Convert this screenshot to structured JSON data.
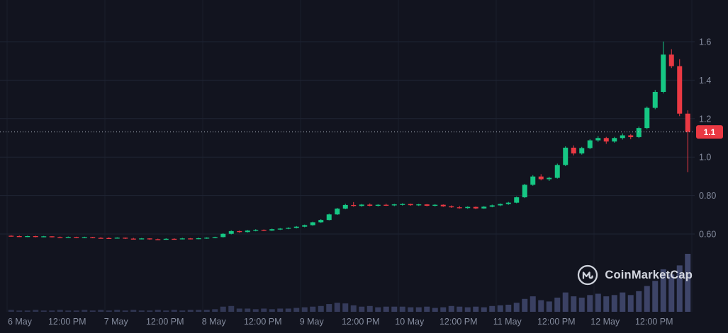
{
  "watermark": {
    "text": "CoinMarketCap"
  },
  "colors": {
    "background": "#12141f",
    "up": "#16c784",
    "down": "#ea3943",
    "grid": "#1f2433",
    "day_grid": "#1a1e2b",
    "axis_text": "#858c9e",
    "volume": "#3e4569",
    "price_line": "#b9bfcc",
    "badge_bg": "#ea3943",
    "badge_text": "#ffffff",
    "watermark_color": "#ced2db"
  },
  "chart_data": {
    "type": "candlestick",
    "title": "",
    "legend": [],
    "grid": true,
    "y_axis": {
      "side": "right",
      "ticks": [
        1.6,
        1.4,
        1.2,
        1.0,
        0.8,
        0.6
      ],
      "tick_labels": [
        "1.6",
        "1.4",
        "1.2",
        "1.0",
        "0.80",
        "0.60"
      ],
      "visible_range": [
        0.55,
        1.65
      ]
    },
    "x_axis": {
      "interval": "2h",
      "labels": [
        {
          "text": "6 May",
          "index": 0
        },
        {
          "text": "12:00 PM",
          "index": 6
        },
        {
          "text": "7 May",
          "index": 12
        },
        {
          "text": "12:00 PM",
          "index": 18
        },
        {
          "text": "8 May",
          "index": 24
        },
        {
          "text": "12:00 PM",
          "index": 30
        },
        {
          "text": "9 May",
          "index": 36
        },
        {
          "text": "12:00 PM",
          "index": 42
        },
        {
          "text": "10 May",
          "index": 48
        },
        {
          "text": "12:00 PM",
          "index": 54
        },
        {
          "text": "11 May",
          "index": 60
        },
        {
          "text": "12:00 PM",
          "index": 66
        },
        {
          "text": "12 May",
          "index": 72
        },
        {
          "text": "12:00 PM",
          "index": 78
        }
      ]
    },
    "current_price": {
      "value": 1.131,
      "label": "1.1"
    },
    "candles_ohlc": [
      [
        0.591,
        0.594,
        0.586,
        0.589
      ],
      [
        0.589,
        0.592,
        0.585,
        0.587
      ],
      [
        0.587,
        0.591,
        0.584,
        0.589
      ],
      [
        0.589,
        0.591,
        0.583,
        0.586
      ],
      [
        0.586,
        0.59,
        0.583,
        0.588
      ],
      [
        0.588,
        0.589,
        0.582,
        0.584
      ],
      [
        0.584,
        0.587,
        0.58,
        0.582
      ],
      [
        0.582,
        0.587,
        0.58,
        0.585
      ],
      [
        0.585,
        0.586,
        0.579,
        0.581
      ],
      [
        0.581,
        0.586,
        0.579,
        0.584
      ],
      [
        0.584,
        0.585,
        0.578,
        0.58
      ],
      [
        0.58,
        0.584,
        0.577,
        0.579
      ],
      [
        0.579,
        0.583,
        0.576,
        0.578
      ],
      [
        0.578,
        0.583,
        0.576,
        0.581
      ],
      [
        0.581,
        0.582,
        0.574,
        0.576
      ],
      [
        0.576,
        0.58,
        0.572,
        0.574
      ],
      [
        0.574,
        0.579,
        0.572,
        0.577
      ],
      [
        0.577,
        0.578,
        0.57,
        0.573
      ],
      [
        0.573,
        0.576,
        0.569,
        0.571
      ],
      [
        0.571,
        0.578,
        0.57,
        0.575
      ],
      [
        0.575,
        0.578,
        0.571,
        0.573
      ],
      [
        0.573,
        0.58,
        0.572,
        0.577
      ],
      [
        0.577,
        0.579,
        0.572,
        0.575
      ],
      [
        0.575,
        0.581,
        0.573,
        0.578
      ],
      [
        0.578,
        0.583,
        0.575,
        0.581
      ],
      [
        0.581,
        0.586,
        0.578,
        0.584
      ],
      [
        0.584,
        0.604,
        0.582,
        0.601
      ],
      [
        0.601,
        0.619,
        0.598,
        0.615
      ],
      [
        0.615,
        0.618,
        0.607,
        0.61
      ],
      [
        0.61,
        0.621,
        0.608,
        0.618
      ],
      [
        0.618,
        0.625,
        0.614,
        0.622
      ],
      [
        0.622,
        0.624,
        0.615,
        0.618
      ],
      [
        0.618,
        0.628,
        0.616,
        0.625
      ],
      [
        0.625,
        0.631,
        0.621,
        0.628
      ],
      [
        0.628,
        0.635,
        0.625,
        0.632
      ],
      [
        0.632,
        0.641,
        0.629,
        0.638
      ],
      [
        0.638,
        0.649,
        0.635,
        0.646
      ],
      [
        0.646,
        0.664,
        0.643,
        0.661
      ],
      [
        0.661,
        0.677,
        0.658,
        0.673
      ],
      [
        0.673,
        0.706,
        0.671,
        0.702
      ],
      [
        0.702,
        0.736,
        0.699,
        0.732
      ],
      [
        0.732,
        0.757,
        0.729,
        0.751
      ],
      [
        0.751,
        0.766,
        0.742,
        0.746
      ],
      [
        0.746,
        0.756,
        0.742,
        0.753
      ],
      [
        0.753,
        0.759,
        0.744,
        0.747
      ],
      [
        0.747,
        0.755,
        0.743,
        0.752
      ],
      [
        0.752,
        0.758,
        0.746,
        0.749
      ],
      [
        0.749,
        0.757,
        0.745,
        0.754
      ],
      [
        0.754,
        0.76,
        0.748,
        0.756
      ],
      [
        0.756,
        0.758,
        0.747,
        0.75
      ],
      [
        0.75,
        0.757,
        0.746,
        0.754
      ],
      [
        0.754,
        0.756,
        0.744,
        0.747
      ],
      [
        0.747,
        0.755,
        0.743,
        0.752
      ],
      [
        0.752,
        0.754,
        0.741,
        0.744
      ],
      [
        0.744,
        0.749,
        0.736,
        0.739
      ],
      [
        0.739,
        0.746,
        0.732,
        0.735
      ],
      [
        0.735,
        0.744,
        0.731,
        0.741
      ],
      [
        0.741,
        0.743,
        0.729,
        0.733
      ],
      [
        0.733,
        0.745,
        0.731,
        0.742
      ],
      [
        0.742,
        0.753,
        0.739,
        0.749
      ],
      [
        0.749,
        0.759,
        0.745,
        0.756
      ],
      [
        0.756,
        0.767,
        0.752,
        0.763
      ],
      [
        0.763,
        0.795,
        0.76,
        0.791
      ],
      [
        0.791,
        0.861,
        0.787,
        0.856
      ],
      [
        0.856,
        0.906,
        0.851,
        0.899
      ],
      [
        0.899,
        0.911,
        0.879,
        0.885
      ],
      [
        0.885,
        0.898,
        0.876,
        0.892
      ],
      [
        0.892,
        0.966,
        0.888,
        0.959
      ],
      [
        0.959,
        1.056,
        0.953,
        1.049
      ],
      [
        1.049,
        1.061,
        1.009,
        1.019
      ],
      [
        1.019,
        1.053,
        1.013,
        1.047
      ],
      [
        1.047,
        1.093,
        1.041,
        1.087
      ],
      [
        1.087,
        1.109,
        1.079,
        1.099
      ],
      [
        1.099,
        1.105,
        1.069,
        1.081
      ],
      [
        1.081,
        1.105,
        1.075,
        1.099
      ],
      [
        1.099,
        1.123,
        1.091,
        1.113
      ],
      [
        1.113,
        1.119,
        1.093,
        1.104
      ],
      [
        1.104,
        1.159,
        1.099,
        1.151
      ],
      [
        1.151,
        1.263,
        1.145,
        1.256
      ],
      [
        1.256,
        1.349,
        1.249,
        1.339
      ],
      [
        1.339,
        1.601,
        1.331,
        1.533
      ],
      [
        1.533,
        1.561,
        1.463,
        1.473
      ],
      [
        1.473,
        1.509,
        1.213,
        1.226
      ],
      [
        1.226,
        1.243,
        0.922,
        1.131
      ]
    ],
    "volumes": [
      3,
      2,
      2,
      3,
      2,
      2,
      3,
      2,
      2,
      3,
      2,
      3,
      2,
      3,
      2,
      3,
      2,
      2,
      3,
      2,
      3,
      2,
      3,
      3,
      3,
      4,
      8,
      9,
      5,
      5,
      4,
      5,
      4,
      5,
      5,
      6,
      7,
      8,
      9,
      12,
      14,
      13,
      10,
      8,
      9,
      7,
      8,
      8,
      8,
      7,
      7,
      8,
      6,
      7,
      9,
      8,
      7,
      8,
      7,
      9,
      10,
      11,
      14,
      20,
      24,
      18,
      16,
      22,
      30,
      24,
      22,
      26,
      28,
      24,
      26,
      30,
      26,
      32,
      40,
      48,
      66,
      58,
      72,
      90
    ]
  }
}
